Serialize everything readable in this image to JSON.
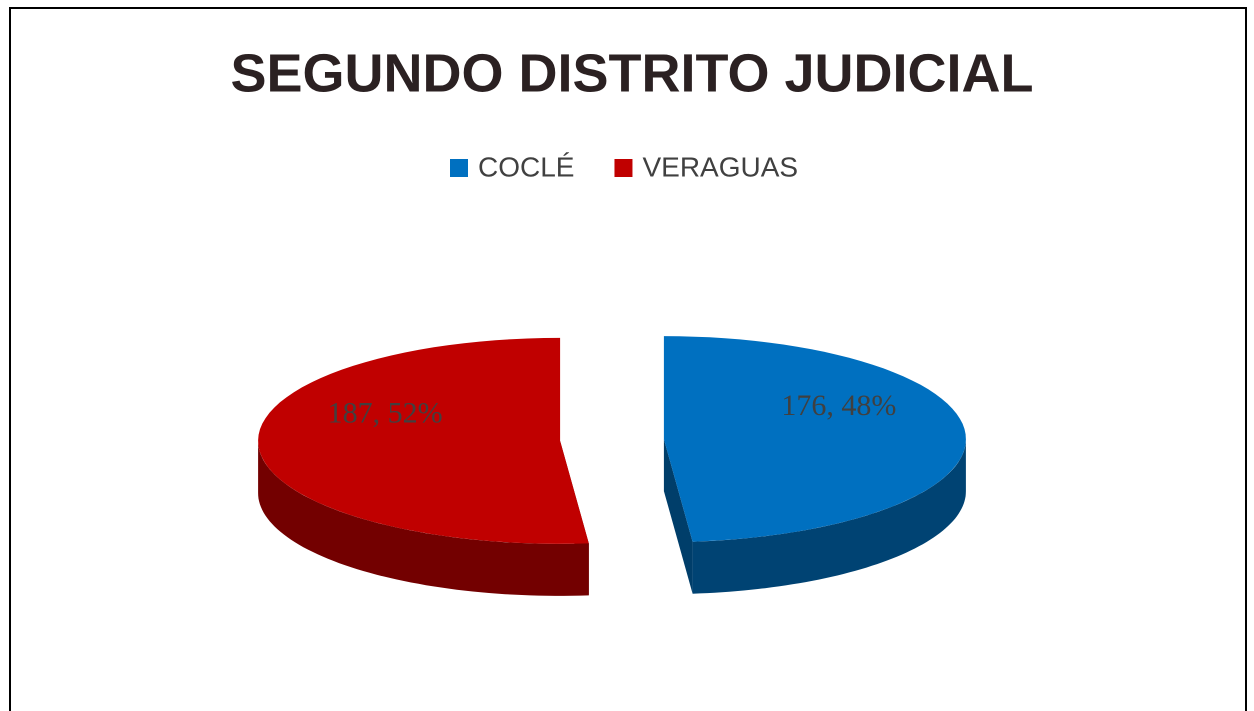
{
  "chart_data": {
    "type": "pie3d",
    "title": "SEGUNDO DISTRITO JUDICIAL",
    "categories": [
      "COCLÉ",
      "VERAGUAS"
    ],
    "values": [
      176,
      187
    ],
    "value_labels": [
      "176, 48%",
      "187, 52%"
    ],
    "colors": [
      "#0070c0",
      "#c00000"
    ],
    "legend": "top"
  }
}
